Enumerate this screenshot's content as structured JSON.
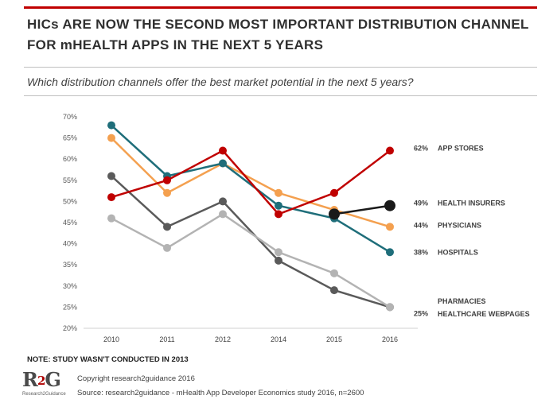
{
  "header": {
    "title_line1": "HICs ARE NOW THE SECOND MOST IMPORTANT DISTRIBUTION CHANNEL",
    "title_line2": "FOR mHEALTH APPS IN THE NEXT 5 YEARS",
    "subtitle": "Which distribution channels offer the best market potential in the next 5 years?"
  },
  "footer": {
    "note": "NOTE: STUDY WASN'T CONDUCTED IN 2013",
    "copyright": "Copyright research2guidance 2016",
    "source": "Source: research2guidance - mHealth App Developer Economics study 2016, n=2600",
    "logo_text": "R2G",
    "logo_sub": "Research2Guidance"
  },
  "colors": {
    "accent": "#c00000",
    "app_stores": "#c00000",
    "health_insurers": "#1a1a1a",
    "physicians": "#f4a04f",
    "hospitals": "#1f6e7a",
    "pharmacies": "#5a5a5a",
    "healthcare_webpages": "#b3b3b3"
  },
  "chart_data": {
    "type": "line",
    "categories": [
      "2010",
      "2011",
      "2012",
      "2014",
      "2015",
      "2016"
    ],
    "ylim": [
      20,
      70
    ],
    "yticks": [
      "20%",
      "25%",
      "30%",
      "35%",
      "40%",
      "45%",
      "50%",
      "55%",
      "60%",
      "65%",
      "70%"
    ],
    "grid": false,
    "series": [
      {
        "name": "PHARMACIES",
        "color": "#5a5a5a",
        "values": [
          56,
          44,
          50,
          36,
          29,
          25
        ],
        "label": ""
      },
      {
        "name": "HEALTHCARE WEBPAGES",
        "color": "#b3b3b3",
        "values": [
          46,
          39,
          47,
          38,
          33,
          25
        ],
        "label": "25%"
      },
      {
        "name": "PHYSICIANS",
        "color": "#f4a04f",
        "values": [
          65,
          52,
          59,
          52,
          48,
          44
        ],
        "label": "44%"
      },
      {
        "name": "HOSPITALS",
        "color": "#1f6e7a",
        "values": [
          68,
          56,
          59,
          49,
          46,
          38
        ],
        "label": "38%"
      },
      {
        "name": "HEALTH INSURERS",
        "color": "#1a1a1a",
        "values": [
          null,
          null,
          null,
          null,
          47,
          49
        ],
        "label": "49%"
      },
      {
        "name": "APP STORES",
        "color": "#c00000",
        "values": [
          51,
          55,
          62,
          47,
          52,
          62
        ],
        "label": "62%"
      }
    ]
  }
}
